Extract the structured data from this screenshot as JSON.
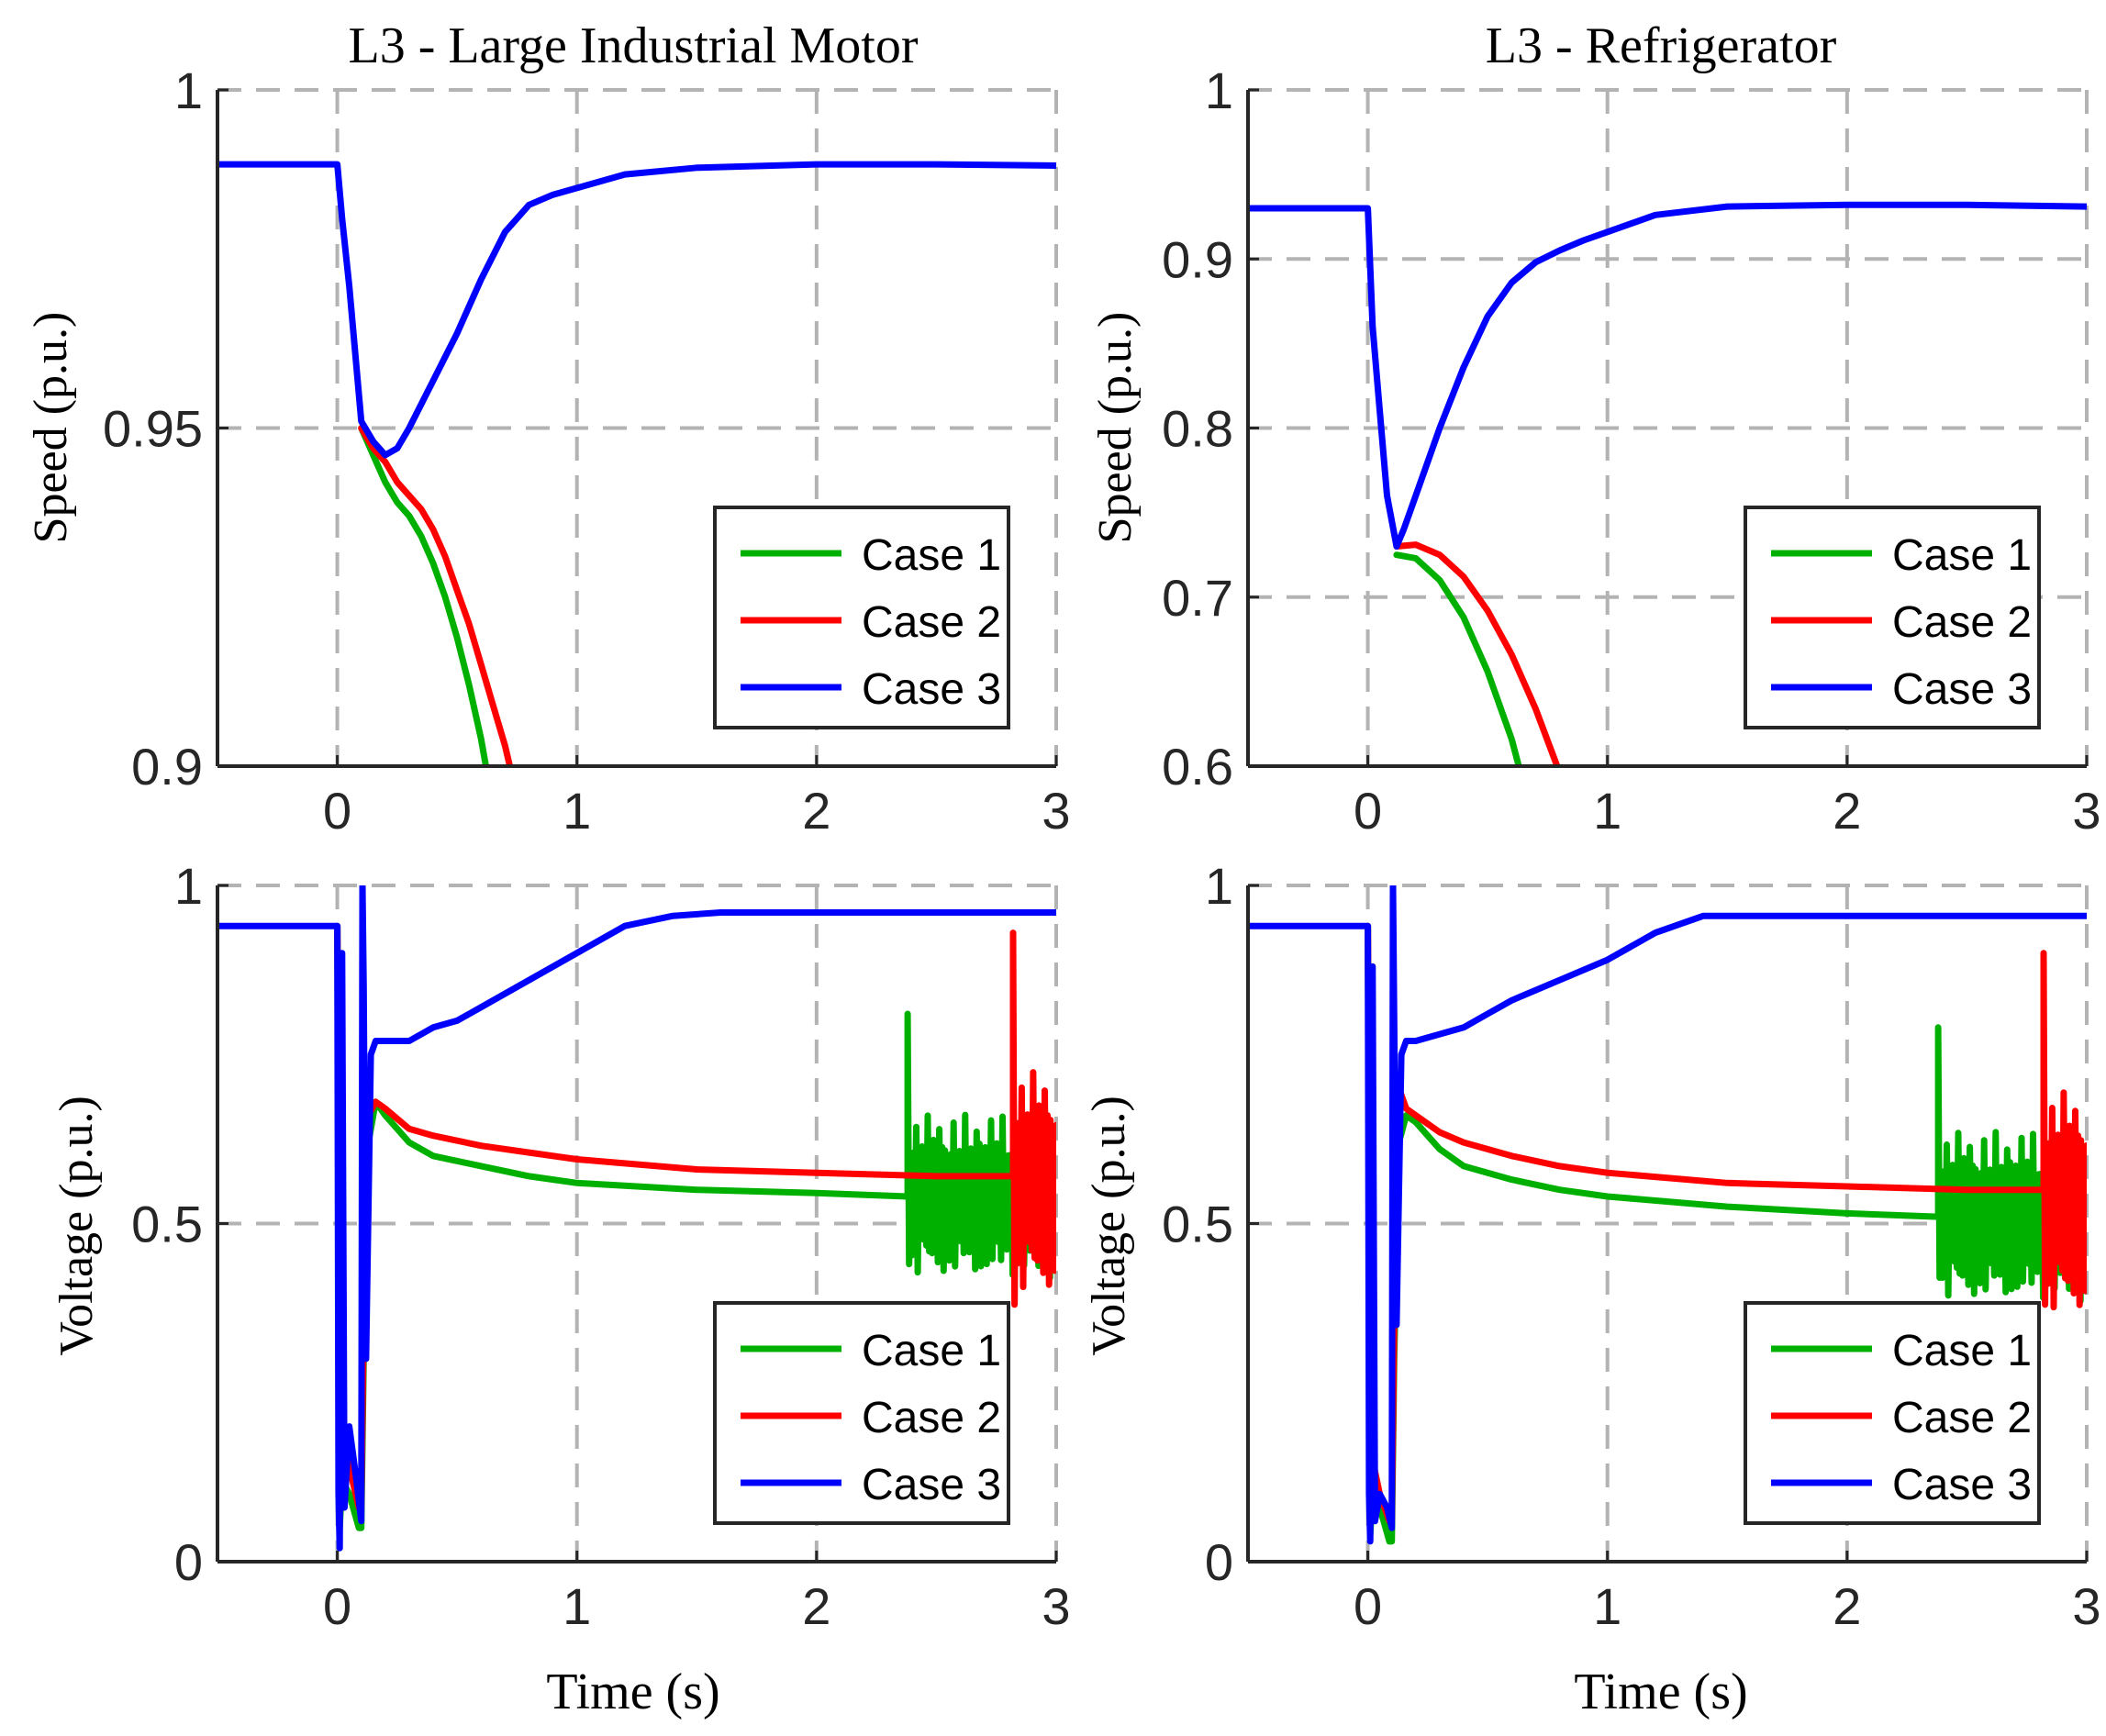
{
  "chart_data": [
    {
      "type": "line",
      "title": "L3 - Large Industrial Motor",
      "xlabel": "",
      "ylabel": "Speed (p.u.)",
      "xlim": [
        -0.5,
        3
      ],
      "ylim": [
        0.9,
        1
      ],
      "xticks": [
        "0",
        "1",
        "2",
        "3"
      ],
      "yticks": [
        "0.9",
        "0.95",
        "1"
      ],
      "grid": true,
      "legend": {
        "position": "bottom-right",
        "entries": [
          "Case 1",
          "Case 2",
          "Case 3"
        ]
      },
      "series": [
        {
          "name": "Case 1",
          "color": "#00b000",
          "x": [
            0.1,
            0.15,
            0.2,
            0.25,
            0.3,
            0.35,
            0.4,
            0.45,
            0.5,
            0.55,
            0.6,
            0.62
          ],
          "y": [
            0.95,
            0.946,
            0.942,
            0.939,
            0.937,
            0.934,
            0.93,
            0.925,
            0.919,
            0.912,
            0.904,
            0.9
          ]
        },
        {
          "name": "Case 2",
          "color": "#ff0000",
          "x": [
            0.1,
            0.15,
            0.2,
            0.25,
            0.3,
            0.35,
            0.4,
            0.45,
            0.5,
            0.55,
            0.6,
            0.65,
            0.7,
            0.72
          ],
          "y": [
            0.95,
            0.947,
            0.945,
            0.942,
            0.94,
            0.938,
            0.935,
            0.931,
            0.926,
            0.921,
            0.915,
            0.909,
            0.903,
            0.9
          ]
        },
        {
          "name": "Case 3",
          "color": "#0000ff",
          "x": [
            -0.5,
            -0.02,
            0.0,
            0.02,
            0.05,
            0.1,
            0.15,
            0.2,
            0.25,
            0.3,
            0.4,
            0.5,
            0.6,
            0.7,
            0.8,
            0.9,
            1.0,
            1.2,
            1.5,
            2.0,
            2.5,
            3.0
          ],
          "y": [
            0.989,
            0.989,
            0.989,
            0.981,
            0.971,
            0.951,
            0.948,
            0.946,
            0.947,
            0.95,
            0.957,
            0.964,
            0.972,
            0.979,
            0.983,
            0.9845,
            0.9855,
            0.9875,
            0.9885,
            0.989,
            0.989,
            0.9888
          ]
        }
      ]
    },
    {
      "type": "line",
      "title": "L3 - Refrigerator",
      "xlabel": "",
      "ylabel": "Speed (p.u.)",
      "xlim": [
        -0.5,
        3
      ],
      "ylim": [
        0.6,
        1
      ],
      "xticks": [
        "0",
        "1",
        "2",
        "3"
      ],
      "yticks": [
        "0.6",
        "0.7",
        "0.8",
        "0.9",
        "1"
      ],
      "grid": true,
      "legend": {
        "position": "bottom-right",
        "entries": [
          "Case 1",
          "Case 2",
          "Case 3"
        ]
      },
      "series": [
        {
          "name": "Case 1",
          "color": "#00b000",
          "x": [
            0.12,
            0.2,
            0.3,
            0.4,
            0.5,
            0.6,
            0.63
          ],
          "y": [
            0.725,
            0.723,
            0.71,
            0.688,
            0.656,
            0.616,
            0.6
          ]
        },
        {
          "name": "Case 2",
          "color": "#ff0000",
          "x": [
            0.12,
            0.2,
            0.3,
            0.4,
            0.5,
            0.6,
            0.7,
            0.79
          ],
          "y": [
            0.73,
            0.731,
            0.725,
            0.712,
            0.692,
            0.666,
            0.634,
            0.6
          ]
        },
        {
          "name": "Case 3",
          "color": "#0000ff",
          "x": [
            -0.5,
            -0.01,
            0.0,
            0.02,
            0.05,
            0.08,
            0.12,
            0.15,
            0.2,
            0.3,
            0.4,
            0.5,
            0.6,
            0.7,
            0.8,
            0.9,
            1.0,
            1.2,
            1.5,
            2.0,
            2.5,
            3.0
          ],
          "y": [
            0.93,
            0.93,
            0.93,
            0.86,
            0.81,
            0.76,
            0.73,
            0.74,
            0.76,
            0.8,
            0.836,
            0.866,
            0.886,
            0.898,
            0.905,
            0.911,
            0.916,
            0.926,
            0.931,
            0.932,
            0.932,
            0.931
          ]
        }
      ]
    },
    {
      "type": "line",
      "title": "",
      "xlabel": "Time (s)",
      "ylabel": "Voltage (p.u.)",
      "xlim": [
        -0.5,
        3
      ],
      "ylim": [
        0,
        1
      ],
      "xticks": [
        "0",
        "1",
        "2",
        "3"
      ],
      "yticks": [
        "0",
        "0.5",
        "1"
      ],
      "grid": true,
      "legend": {
        "position": "bottom-right",
        "entries": [
          "Case 1",
          "Case 2",
          "Case 3"
        ]
      },
      "series": [
        {
          "name": "Case 1",
          "color": "#00b000",
          "x": [
            0.0,
            0.01,
            0.02,
            0.05,
            0.09,
            0.1,
            0.11,
            0.13,
            0.16,
            0.2,
            0.3,
            0.4,
            0.6,
            0.8,
            1.0,
            1.5,
            2.0,
            2.38
          ],
          "y": [
            0.94,
            0.05,
            0.12,
            0.1,
            0.05,
            0.05,
            0.3,
            0.62,
            0.68,
            0.66,
            0.62,
            0.6,
            0.585,
            0.57,
            0.56,
            0.55,
            0.545,
            0.54
          ],
          "oscillation_start": 2.38,
          "oscillation_mean": 0.54,
          "oscillation_peak": 0.81,
          "oscillation_low": 0.44
        },
        {
          "name": "Case 2",
          "color": "#ff0000",
          "x": [
            0.0,
            0.01,
            0.02,
            0.05,
            0.09,
            0.1,
            0.11,
            0.13,
            0.16,
            0.2,
            0.3,
            0.4,
            0.6,
            0.8,
            1.0,
            1.5,
            2.0,
            2.5,
            2.82
          ],
          "y": [
            0.94,
            0.46,
            0.2,
            0.14,
            0.08,
            0.08,
            0.35,
            0.66,
            0.68,
            0.67,
            0.64,
            0.63,
            0.615,
            0.605,
            0.595,
            0.58,
            0.575,
            0.57,
            0.57
          ],
          "oscillation_start": 2.82,
          "oscillation_mean": 0.56,
          "oscillation_peak": 0.93,
          "oscillation_low": 0.38
        },
        {
          "name": "Case 3",
          "color": "#0000ff",
          "x": [
            -0.5,
            -0.01,
            0.0,
            0.005,
            0.01,
            0.02,
            0.03,
            0.05,
            0.08,
            0.1,
            0.105,
            0.11,
            0.12,
            0.14,
            0.16,
            0.2,
            0.3,
            0.4,
            0.5,
            0.6,
            0.8,
            1.0,
            1.2,
            1.4,
            1.6,
            2.0,
            2.5,
            3.0
          ],
          "y": [
            0.94,
            0.94,
            0.94,
            0.1,
            0.02,
            0.9,
            0.08,
            0.2,
            0.12,
            0.06,
            1.0,
            0.85,
            0.3,
            0.75,
            0.77,
            0.77,
            0.77,
            0.79,
            0.8,
            0.82,
            0.86,
            0.9,
            0.94,
            0.955,
            0.96,
            0.96,
            0.96,
            0.96
          ]
        }
      ]
    },
    {
      "type": "line",
      "title": "",
      "xlabel": "Time (s)",
      "ylabel": "Voltage (p.u.)",
      "xlim": [
        -0.5,
        3
      ],
      "ylim": [
        0,
        1
      ],
      "xticks": [
        "0",
        "1",
        "2",
        "3"
      ],
      "yticks": [
        "0",
        "0.5",
        "1"
      ],
      "grid": true,
      "legend": {
        "position": "bottom-right",
        "entries": [
          "Case 1",
          "Case 2",
          "Case 3"
        ]
      },
      "series": [
        {
          "name": "Case 1",
          "color": "#00b000",
          "x": [
            0.0,
            0.01,
            0.02,
            0.05,
            0.09,
            0.1,
            0.11,
            0.13,
            0.16,
            0.2,
            0.3,
            0.4,
            0.6,
            0.8,
            1.0,
            1.5,
            2.0,
            2.38
          ],
          "y": [
            0.94,
            0.04,
            0.1,
            0.08,
            0.03,
            0.03,
            0.3,
            0.62,
            0.66,
            0.65,
            0.61,
            0.585,
            0.565,
            0.55,
            0.54,
            0.525,
            0.515,
            0.51
          ],
          "oscillation_start": 2.38,
          "oscillation_mean": 0.51,
          "oscillation_peak": 0.79,
          "oscillation_low": 0.42
        },
        {
          "name": "Case 2",
          "color": "#ff0000",
          "x": [
            0.0,
            0.01,
            0.02,
            0.05,
            0.09,
            0.1,
            0.11,
            0.13,
            0.16,
            0.2,
            0.3,
            0.4,
            0.6,
            0.8,
            1.0,
            1.5,
            2.0,
            2.5,
            2.82
          ],
          "y": [
            0.94,
            0.3,
            0.15,
            0.1,
            0.06,
            0.06,
            0.35,
            0.7,
            0.67,
            0.66,
            0.635,
            0.62,
            0.6,
            0.585,
            0.575,
            0.56,
            0.555,
            0.55,
            0.55
          ],
          "oscillation_start": 2.82,
          "oscillation_mean": 0.53,
          "oscillation_peak": 0.9,
          "oscillation_low": 0.38
        },
        {
          "name": "Case 3",
          "color": "#0000ff",
          "x": [
            -0.5,
            -0.01,
            0.0,
            0.005,
            0.01,
            0.02,
            0.03,
            0.05,
            0.08,
            0.1,
            0.105,
            0.11,
            0.12,
            0.14,
            0.16,
            0.2,
            0.3,
            0.4,
            0.5,
            0.6,
            0.8,
            1.0,
            1.2,
            1.4,
            1.6,
            2.0,
            2.5,
            3.0
          ],
          "y": [
            0.94,
            0.94,
            0.94,
            0.1,
            0.03,
            0.88,
            0.06,
            0.1,
            0.08,
            0.05,
            1.0,
            0.8,
            0.35,
            0.75,
            0.77,
            0.77,
            0.78,
            0.79,
            0.81,
            0.83,
            0.86,
            0.89,
            0.93,
            0.955,
            0.955,
            0.955,
            0.955,
            0.955
          ]
        }
      ]
    }
  ]
}
